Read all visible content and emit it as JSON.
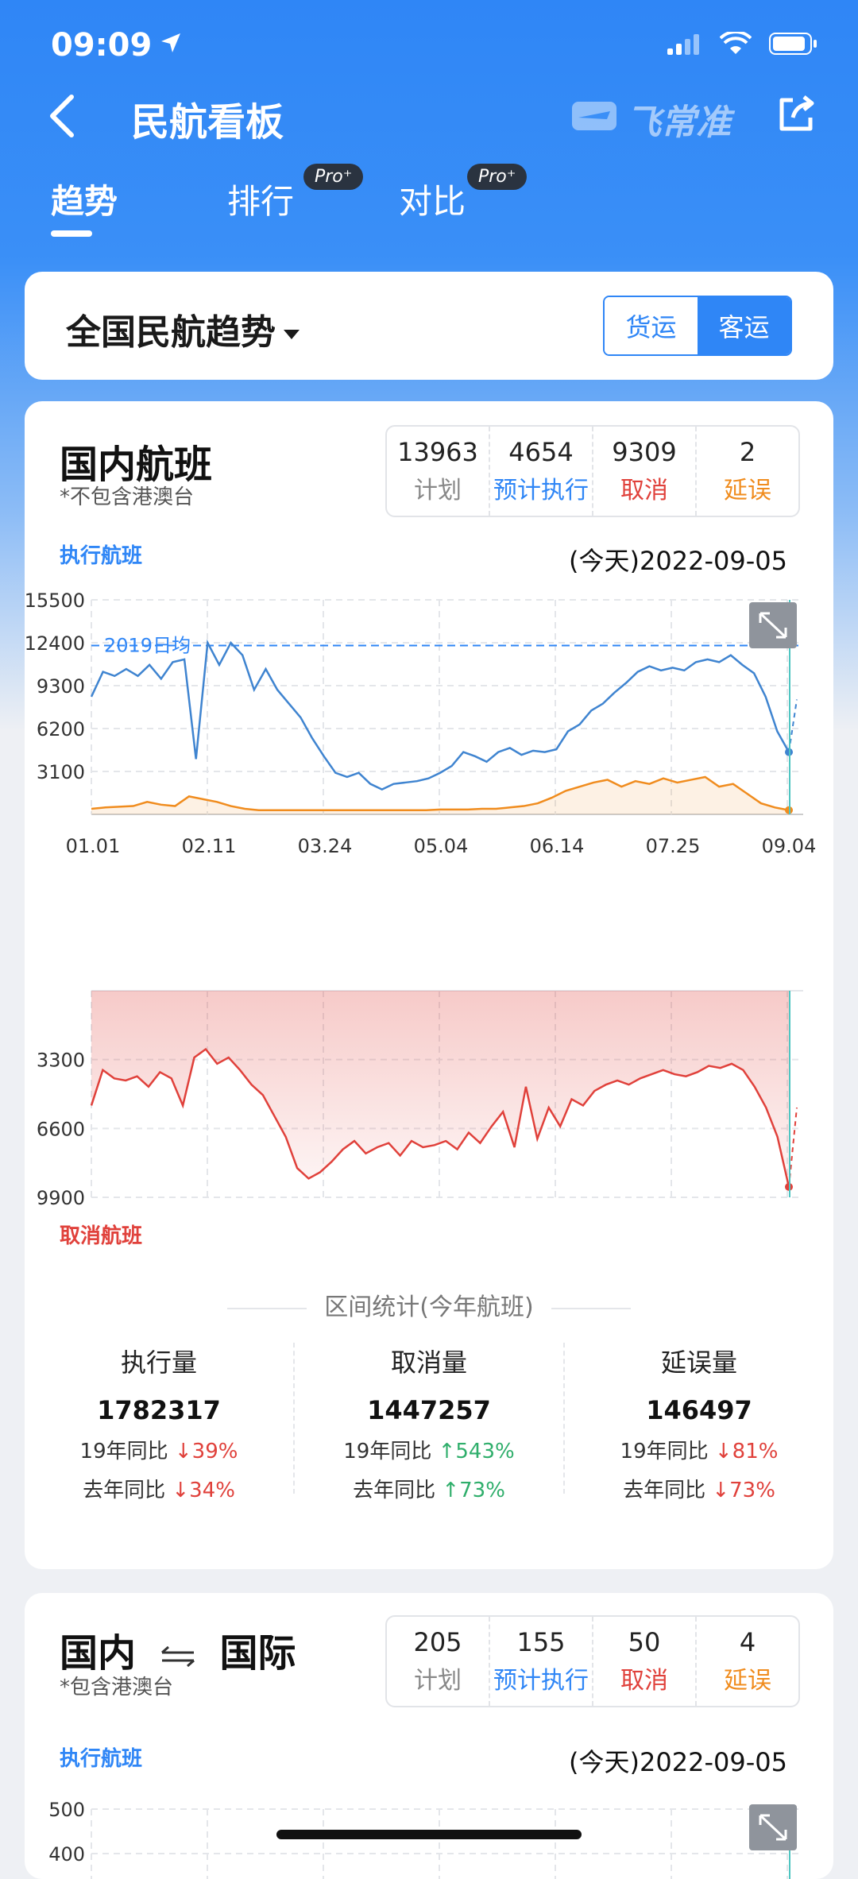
{
  "status": {
    "time": "09:09"
  },
  "nav": {
    "title": "民航看板",
    "brand": "飞常准"
  },
  "tabs": [
    {
      "label": "趋势"
    },
    {
      "label": "排行",
      "badge": "Pro⁺"
    },
    {
      "label": "对比",
      "badge": "Pro⁺"
    }
  ],
  "selector": {
    "title": "全国民航趋势",
    "options": [
      "货运",
      "客运"
    ],
    "selected": "客运"
  },
  "domestic": {
    "title": "国内航班",
    "subtitle": "*不包含港澳台",
    "stats": [
      {
        "num": "13963",
        "label": "计划"
      },
      {
        "num": "4654",
        "label": "预计执行"
      },
      {
        "num": "9309",
        "label": "取消"
      },
      {
        "num": "2",
        "label": "延误"
      }
    ],
    "exec_label": "执行航班",
    "cancel_label": "取消航班",
    "date": "(今天)2022-09-05",
    "ref_label": "2019日均",
    "interval_title": "区间统计(今年航班)",
    "summary": [
      {
        "head": "执行量",
        "value": "1782317",
        "r19": "19年同比",
        "r19v": "↓39%",
        "rly": "去年同比",
        "rlyv": "↓34%"
      },
      {
        "head": "取消量",
        "value": "1447257",
        "r19": "19年同比",
        "r19v": "↑543%",
        "rly": "去年同比",
        "rlyv": "↑73%"
      },
      {
        "head": "延误量",
        "value": "146497",
        "r19": "19年同比",
        "r19v": "↓81%",
        "rly": "去年同比",
        "rlyv": "↓73%"
      }
    ]
  },
  "international": {
    "title_left": "国内",
    "title_right": "国际",
    "subtitle": "*包含港澳台",
    "stats": [
      {
        "num": "205",
        "label": "计划"
      },
      {
        "num": "155",
        "label": "预计执行"
      },
      {
        "num": "50",
        "label": "取消"
      },
      {
        "num": "4",
        "label": "延误"
      }
    ],
    "exec_label": "执行航班",
    "date": "(今天)2022-09-05"
  },
  "colors": {
    "primary": "#2f86f6",
    "cancel": "#e0413b",
    "delay": "#f08c1e",
    "up": "#2fae6b"
  },
  "chart_data": [
    {
      "type": "line",
      "title": "执行航班",
      "x_ticks": [
        "01.01",
        "02.11",
        "03.24",
        "05.04",
        "06.14",
        "07.25",
        "09.04"
      ],
      "y_ticks": [
        3100,
        6200,
        9300,
        12400,
        15500
      ],
      "ylim": [
        0,
        15500
      ],
      "reference_line": {
        "label": "2019日均",
        "value": 12200
      },
      "series": [
        {
          "values": [
            8500,
            10300,
            10000,
            10500,
            10000,
            10800,
            9800,
            11000,
            11200,
            4000,
            12400,
            10800,
            12400,
            11500,
            9000,
            10500,
            9000,
            8000,
            7000,
            5500,
            4200,
            3000,
            2700,
            3000,
            2200,
            1800,
            2200,
            2300,
            2400,
            2600,
            3000,
            3500,
            4500,
            4200,
            3800,
            4500,
            4800,
            4300,
            4600,
            4500,
            4700,
            6000,
            6500,
            7500,
            8000,
            8800,
            9500,
            10300,
            10700,
            10400,
            10600,
            10400,
            11000,
            11200,
            11000,
            11500,
            10800,
            10200,
            8500,
            6000,
            4500
          ]
        },
        {
          "values": [
            400,
            500,
            550,
            600,
            900,
            700,
            600,
            1300,
            1100,
            900,
            600,
            400,
            300,
            300,
            300,
            300,
            300,
            300,
            300,
            300,
            300,
            300,
            300,
            300,
            300,
            350,
            350,
            350,
            400,
            400,
            500,
            600,
            800,
            1200,
            1700,
            2000,
            2300,
            2500,
            2000,
            2400,
            2200,
            2600,
            2300,
            2500,
            2700,
            2000,
            2200,
            1500,
            800,
            500,
            300
          ]
        }
      ]
    },
    {
      "type": "area",
      "title": "取消航班",
      "x_ticks": [
        "01.01",
        "02.11",
        "03.24",
        "05.04",
        "06.14",
        "07.25",
        "09.04"
      ],
      "y_ticks": [
        3300,
        6600,
        9900
      ],
      "ylim": [
        0,
        9900
      ],
      "y_inverted": true,
      "series": [
        {
          "values": [
            5500,
            3800,
            4200,
            4300,
            4100,
            4600,
            3900,
            4200,
            5500,
            3200,
            2800,
            3500,
            3200,
            3800,
            4500,
            5000,
            6000,
            7000,
            8500,
            9000,
            8700,
            8200,
            7600,
            7200,
            7800,
            7500,
            7300,
            7900,
            7200,
            7500,
            7400,
            7200,
            7600,
            6800,
            7300,
            6500,
            5800,
            7500,
            4600,
            7100,
            5600,
            6500,
            5200,
            5500,
            4800,
            4500,
            4300,
            4500,
            4200,
            4000,
            3800,
            4000,
            4100,
            3900,
            3600,
            3700,
            3500,
            3800,
            4600,
            5600,
            7000,
            9400
          ]
        }
      ]
    },
    {
      "type": "line",
      "title": "执行航班",
      "y_ticks": [
        400,
        500
      ],
      "series": []
    }
  ]
}
